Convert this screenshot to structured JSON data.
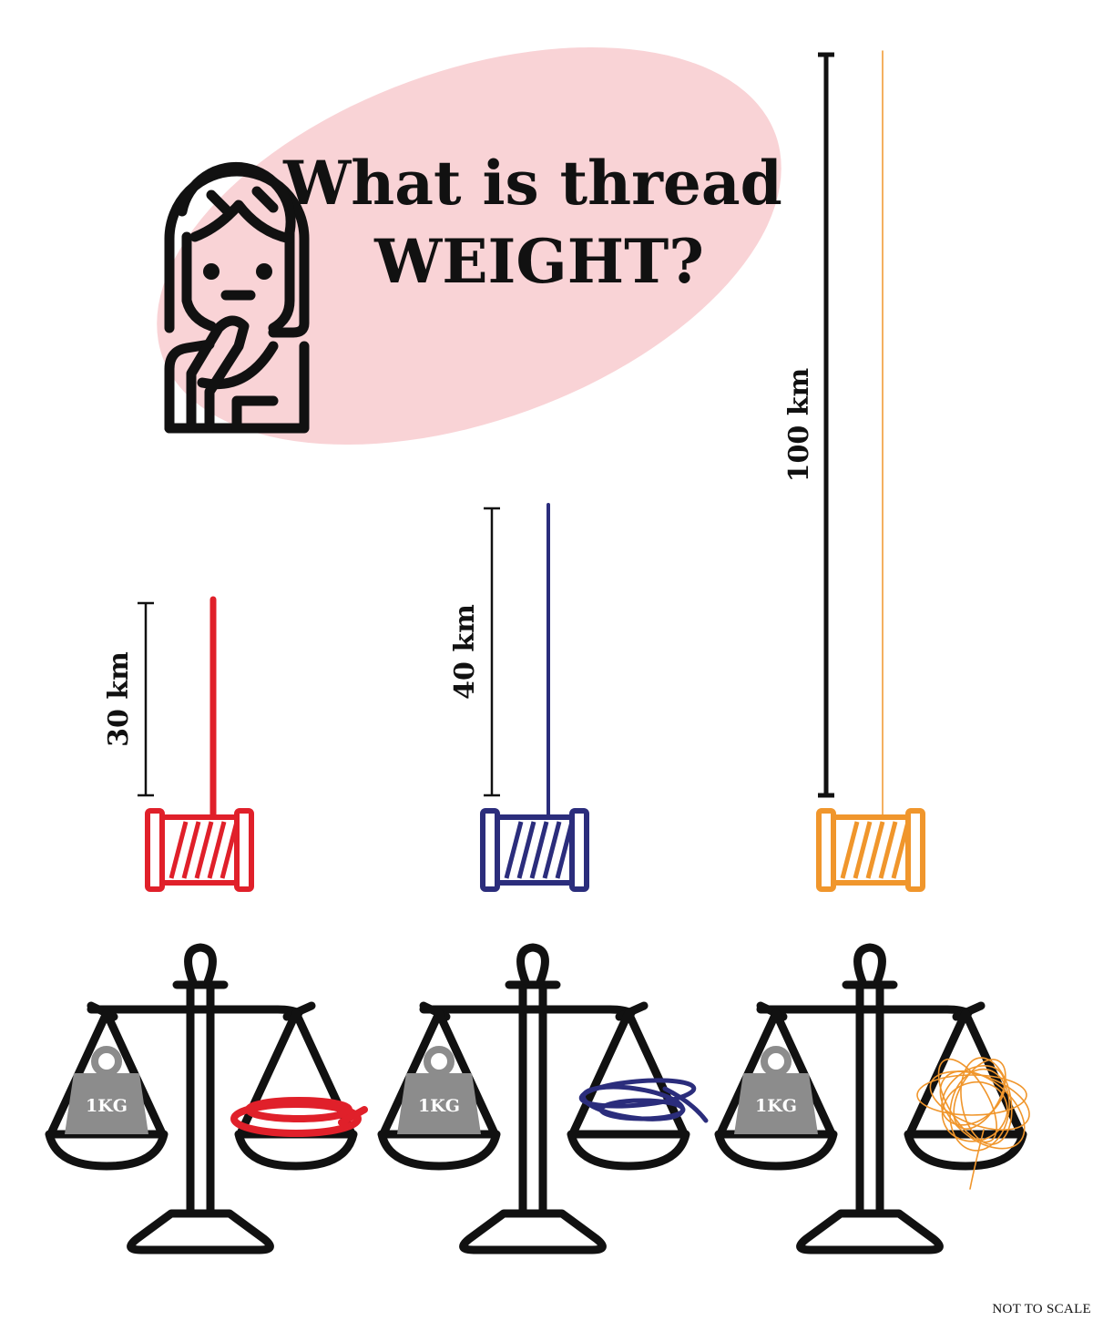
{
  "title": {
    "line1": "What is thread",
    "line2": "WEIGHT?"
  },
  "colors": {
    "bubble": "#f9d3d6",
    "ink": "#111111",
    "weight": "#8c8c8c"
  },
  "threads": [
    {
      "length_label": "30 km",
      "color": "#e0202a"
    },
    {
      "length_label": "40 km",
      "color": "#2b2d7c"
    },
    {
      "length_label": "100 km",
      "color": "#f0962c"
    }
  ],
  "weight_label": "1KG",
  "icons": [
    "thinking-woman-icon",
    "spool-icon",
    "balance-scale-icon",
    "kettlebell-weight-icon"
  ],
  "footnote": "NOT TO SCALE"
}
